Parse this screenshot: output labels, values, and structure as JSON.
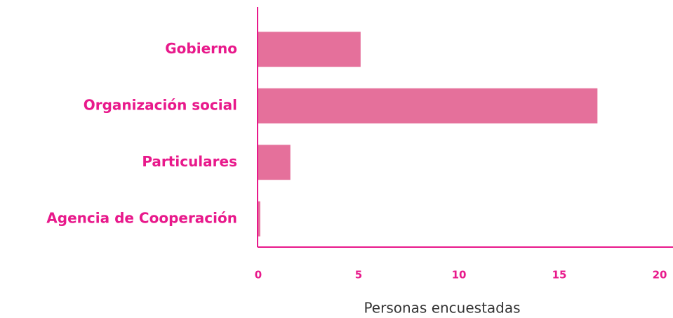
{
  "chart_data": {
    "type": "bar",
    "orientation": "horizontal",
    "x_label": "Personas encuestadas",
    "categories": [
      "Gobierno",
      "Organización social",
      "Particulares",
      "Agencia de Cooperación"
    ],
    "values": [
      5.1,
      16.9,
      1.6,
      0.1
    ],
    "color": "#e5709b",
    "axis_color": "#e8198b",
    "xlim": [
      0,
      20
    ],
    "xticks": [
      0,
      5,
      10,
      15,
      20
    ],
    "grid": false
  }
}
